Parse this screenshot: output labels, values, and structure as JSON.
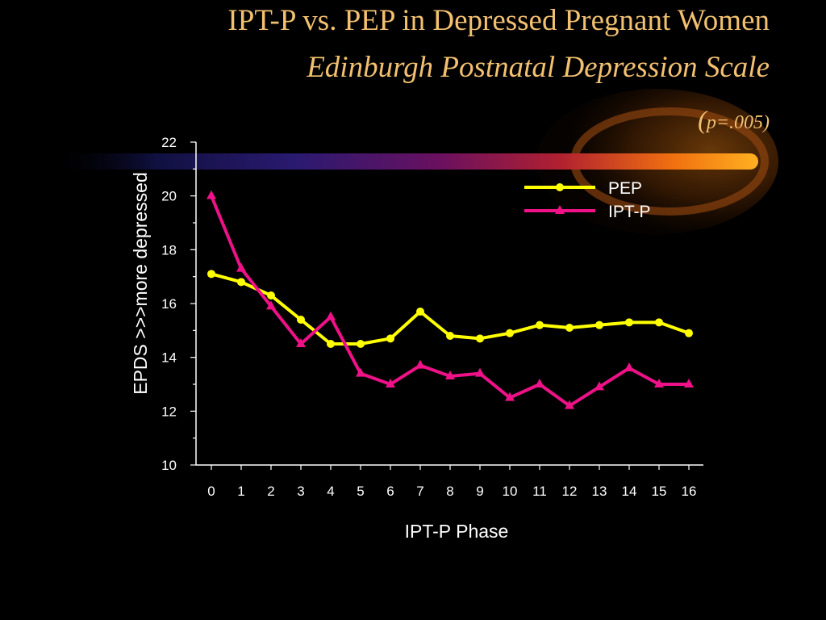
{
  "slide": {
    "title": "IPT-P vs. PEP in Depressed Pregnant Women",
    "subtitle": "Edinburgh Postnatal Depression Scale",
    "p_open": "(",
    "p_value": "p=.005)"
  },
  "colors": {
    "title": "#f2c070",
    "background": "#000000",
    "pep": "#ffff00",
    "iptp": "#ee1188",
    "axis": "#ffffff"
  },
  "chart_data": {
    "type": "line",
    "xlabel": "IPT-P Phase",
    "ylabel": "EPDS >>>more depressed",
    "categories": [
      "0",
      "1",
      "2",
      "3",
      "4",
      "5",
      "6",
      "7",
      "8",
      "9",
      "10",
      "11",
      "12",
      "13",
      "14",
      "15",
      "16"
    ],
    "ylim": [
      10,
      22
    ],
    "yticks": [
      "10",
      "12",
      "14",
      "16",
      "18",
      "20",
      "22"
    ],
    "grid": false,
    "legend_position": "top-right",
    "series": [
      {
        "name": "PEP",
        "marker": "circle",
        "color": "#ffff00",
        "values": [
          17.1,
          16.8,
          16.3,
          15.4,
          14.5,
          14.5,
          14.7,
          15.7,
          14.8,
          14.7,
          14.9,
          15.2,
          15.1,
          15.2,
          15.3,
          15.3,
          14.9
        ]
      },
      {
        "name": "IPT-P",
        "marker": "triangle",
        "color": "#ee1188",
        "values": [
          20.0,
          17.3,
          15.9,
          14.5,
          15.5,
          13.4,
          13.0,
          13.7,
          13.3,
          13.4,
          12.5,
          13.0,
          12.2,
          12.9,
          13.6,
          13.0,
          13.0
        ]
      }
    ]
  }
}
